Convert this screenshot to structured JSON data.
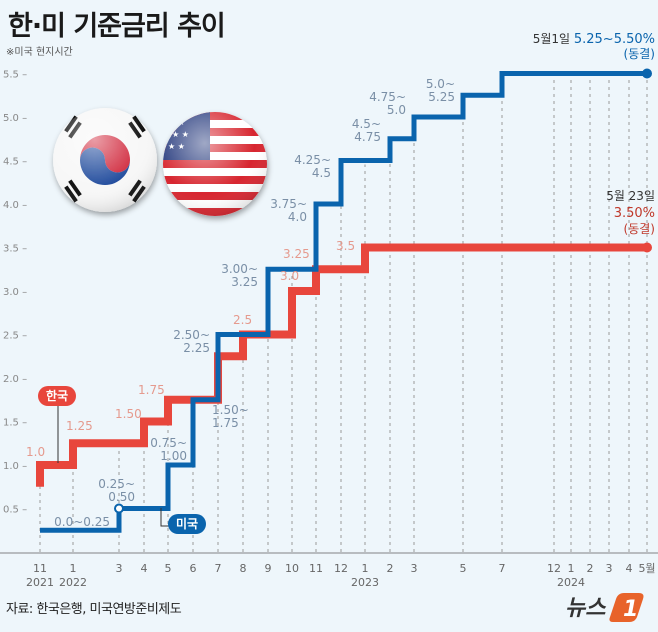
{
  "title": "한·미 기준금리 추이",
  "subtitle": "※미국 현지시간",
  "source": "자료: 한국은행, 미국연방준비제도",
  "logo_text": "뉴스1",
  "chart_data": {
    "type": "line",
    "step": true,
    "title": "한·미 기준금리 추이",
    "ylim": [
      0,
      5.7
    ],
    "yticks": [
      0.5,
      1.0,
      1.5,
      2.0,
      2.5,
      3.0,
      3.5,
      4.0,
      4.5,
      5.0,
      5.5
    ],
    "ytick_labels": [
      "0.5",
      "1.0",
      "1.5",
      "2.0",
      "2.5",
      "3.0",
      "3.5",
      "4.0",
      "4.5",
      "5.0",
      "5.5"
    ],
    "x": [
      "2021-11",
      "2022-01",
      "2022-03",
      "2022-04",
      "2022-05",
      "2022-06",
      "2022-07",
      "2022-08",
      "2022-09",
      "2022-10",
      "2022-11",
      "2022-12",
      "2023-01",
      "2023-02",
      "2023-03",
      "2023-05",
      "2023-07",
      "2023-12",
      "2024-01",
      "2024-02",
      "2024-03",
      "2024-04",
      "2024-05"
    ],
    "xtick_labels": [
      "11",
      "1",
      "3",
      "4",
      "5",
      "6",
      "7",
      "8",
      "9",
      "10",
      "11",
      "12",
      "1",
      "2",
      "3",
      "5",
      "7",
      "12",
      "1",
      "2",
      "3",
      "4",
      "5월"
    ],
    "year_labels": [
      {
        "at": 0,
        "text": "2021"
      },
      {
        "at": 1,
        "text": "2022"
      },
      {
        "at": 12,
        "text": "2023"
      },
      {
        "at": 18,
        "text": "2024"
      }
    ],
    "grid": "vertical dashed",
    "series": [
      {
        "name": "한국",
        "color": "#e8463c",
        "label_color": "#e59a8e",
        "start_value": 0.75,
        "values": [
          1.0,
          1.25,
          1.25,
          1.5,
          1.75,
          1.75,
          2.25,
          2.5,
          2.5,
          3.0,
          3.25,
          3.25,
          3.5,
          3.5,
          3.5,
          3.5,
          3.5,
          3.5,
          3.5,
          3.5,
          3.5,
          3.5,
          3.5
        ],
        "point_labels": [
          {
            "at": 0,
            "text": "1.0"
          },
          {
            "at": 1,
            "text": "1.25"
          },
          {
            "at": 3,
            "text": "1.50"
          },
          {
            "at": 4,
            "text": "1.75"
          },
          {
            "at": 7,
            "text": "2.5"
          },
          {
            "at": 9,
            "text": "3.0"
          },
          {
            "at": 10,
            "text": "3.25"
          },
          {
            "at": 12,
            "text": "3.5"
          }
        ],
        "end_note": {
          "date": "5월 23일",
          "value": "3.50%",
          "status": "(동결)"
        }
      },
      {
        "name": "미국",
        "color": "#0a64ad",
        "label_color": "#7a8fa6",
        "ranges": [
          "0.0~0.25",
          "0.0~0.25",
          "0.25~0.50",
          "0.25~0.50",
          "0.75~1.00",
          "1.50~1.75",
          "2.25~2.50",
          "2.25~2.50",
          "3.00~3.25",
          "3.00~3.25",
          "3.75~4.0",
          "4.25~4.5",
          "4.25~4.5",
          "4.5~4.75",
          "4.75~5.0",
          "5.0~5.25",
          "5.25~5.50",
          "5.25~5.50",
          "5.25~5.50",
          "5.25~5.50",
          "5.25~5.50",
          "5.25~5.50",
          "5.25~5.50"
        ],
        "values": [
          0.25,
          0.25,
          0.5,
          0.5,
          1.0,
          1.75,
          2.5,
          2.5,
          3.25,
          3.25,
          4.0,
          4.5,
          4.5,
          4.75,
          5.0,
          5.25,
          5.5,
          5.5,
          5.5,
          5.5,
          5.5,
          5.5,
          5.5
        ],
        "point_labels": [
          {
            "at": 0,
            "lines": [
              "0.0~0.25"
            ]
          },
          {
            "at": 2,
            "lines": [
              "0.25~",
              "0.50"
            ]
          },
          {
            "at": 4,
            "lines": [
              "0.75~",
              "1.00"
            ]
          },
          {
            "at": 5,
            "lines": [
              "1.50~",
              "1.75"
            ]
          },
          {
            "at": 6,
            "lines": [
              "2.50~",
              "2.25"
            ]
          },
          {
            "at": 8,
            "lines": [
              "3.00~",
              "3.25"
            ]
          },
          {
            "at": 10,
            "lines": [
              "3.75~",
              "4.0"
            ]
          },
          {
            "at": 11,
            "lines": [
              "4.25~",
              "4.5"
            ]
          },
          {
            "at": 13,
            "lines": [
              "4.5~",
              "4.75"
            ]
          },
          {
            "at": 14,
            "lines": [
              "4.75~",
              "5.0"
            ]
          },
          {
            "at": 15,
            "lines": [
              "5.0~",
              "5.25"
            ]
          }
        ],
        "end_note": {
          "date": "5월1일",
          "value": "5.25~5.50%",
          "status": "(동결)"
        }
      }
    ]
  }
}
